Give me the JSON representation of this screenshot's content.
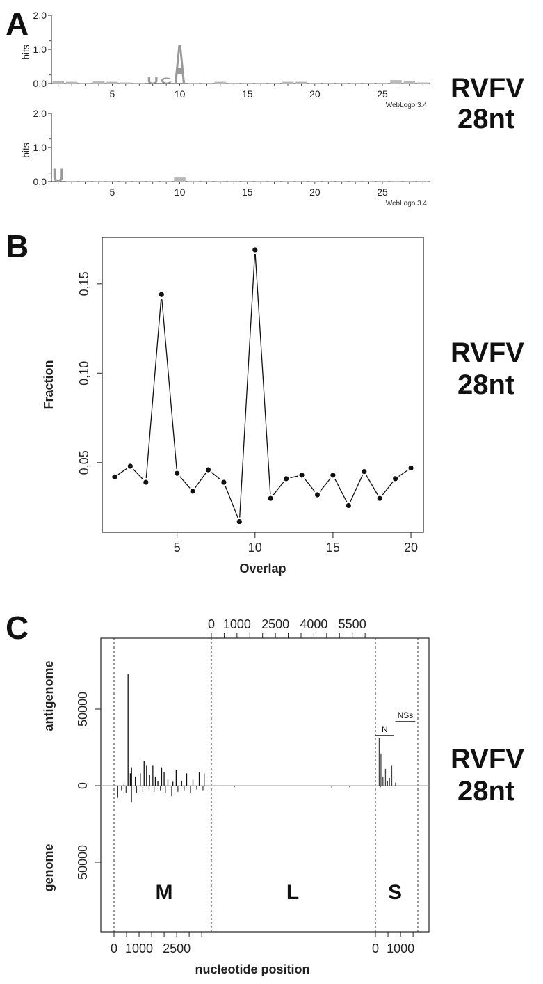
{
  "panels": {
    "A": {
      "letter": "A",
      "side_label_line1": "RVFV",
      "side_label_line2": "28nt"
    },
    "B": {
      "letter": "B",
      "side_label_line1": "RVFV",
      "side_label_line2": "28nt"
    },
    "C": {
      "letter": "C",
      "side_label_line1": "RVFV",
      "side_label_line2": "28nt"
    }
  },
  "chart_data": [
    {
      "type": "bar",
      "panel": "A",
      "subplot": "top",
      "ylabel": "bits",
      "ylim": [
        0,
        2.0
      ],
      "y_ticks": [
        "0.0",
        "1.0",
        "2.0"
      ],
      "x_ticks": [
        5,
        10,
        15,
        20,
        25
      ],
      "xlim": [
        0.5,
        28.5
      ],
      "software_label": "WebLogo 3.4",
      "positions": [
        1,
        2,
        3,
        4,
        5,
        6,
        7,
        8,
        9,
        10,
        11,
        12,
        13,
        14,
        15,
        16,
        17,
        18,
        19,
        20,
        21,
        22,
        23,
        24,
        25,
        26,
        27,
        28
      ],
      "values": [
        0.07,
        0.05,
        0.02,
        0.06,
        0.05,
        0.03,
        0.02,
        0.19,
        0.17,
        1.18,
        0.02,
        0.02,
        0.05,
        0.02,
        0.02,
        0.02,
        0.02,
        0.05,
        0.05,
        0.02,
        0.02,
        0.02,
        0.02,
        0.02,
        0.02,
        0.1,
        0.08,
        0.03
      ],
      "letters": [
        "",
        "",
        "",
        "",
        "",
        "",
        "",
        "U",
        "C",
        "A",
        "",
        "",
        "",
        "",
        "",
        "",
        "",
        "",
        "",
        "",
        "",
        "",
        "",
        "",
        "",
        "",
        "",
        ""
      ]
    },
    {
      "type": "bar",
      "panel": "A",
      "subplot": "bottom",
      "ylabel": "bits",
      "ylim": [
        0,
        2.0
      ],
      "y_ticks": [
        "0.0",
        "1.0",
        "2.0"
      ],
      "x_ticks": [
        5,
        10,
        15,
        20,
        25
      ],
      "xlim": [
        0.5,
        28.5
      ],
      "software_label": "WebLogo 3.4",
      "positions": [
        1,
        2,
        3,
        4,
        5,
        6,
        7,
        8,
        9,
        10,
        11,
        12,
        13,
        14,
        15,
        16,
        17,
        18,
        19,
        20,
        21,
        22,
        23,
        24,
        25,
        26,
        27,
        28
      ],
      "values": [
        0.4,
        0.02,
        0.02,
        0.02,
        0.02,
        0.02,
        0.02,
        0.02,
        0.02,
        0.12,
        0.02,
        0.02,
        0.02,
        0.02,
        0.02,
        0.02,
        0.02,
        0.02,
        0.02,
        0.02,
        0.02,
        0.02,
        0.02,
        0.02,
        0.02,
        0.02,
        0.02,
        0.02
      ],
      "letters": [
        "U",
        "",
        "",
        "",
        "",
        "",
        "",
        "",
        "",
        "",
        "",
        "",
        "",
        "",
        "",
        "",
        "",
        "",
        "",
        "",
        "",
        "",
        "",
        "",
        "",
        "",
        "",
        ""
      ]
    },
    {
      "type": "line",
      "panel": "B",
      "xlabel": "Overlap",
      "ylabel": "Fraction",
      "x_ticks": [
        5,
        10,
        15,
        20
      ],
      "y_ticks": [
        0.05,
        0.1,
        0.15
      ],
      "y_tick_labels": [
        "0,05",
        "0,10",
        "0,15"
      ],
      "xlim": [
        0.2,
        20.8
      ],
      "ylim": [
        0.011,
        0.176
      ],
      "x": [
        1,
        2,
        3,
        4,
        5,
        6,
        7,
        8,
        9,
        10,
        11,
        12,
        13,
        14,
        15,
        16,
        17,
        18,
        19,
        20
      ],
      "y": [
        0.042,
        0.048,
        0.039,
        0.144,
        0.044,
        0.034,
        0.046,
        0.039,
        0.017,
        0.169,
        0.03,
        0.041,
        0.043,
        0.032,
        0.043,
        0.026,
        0.045,
        0.03,
        0.041,
        0.047
      ]
    },
    {
      "type": "bar",
      "panel": "C",
      "xlabel": "nucleotide position",
      "ylabel_top": "antigenome",
      "ylabel_bottom": "genome",
      "y_ticks": [
        50000,
        0,
        50000
      ],
      "y_tick_labels": [
        "50000",
        "0",
        "50000"
      ],
      "ylim": [
        -82000,
        82000
      ],
      "top_ticks": [
        "0",
        "1000",
        "2500",
        "4000",
        "5500"
      ],
      "bottom_ticks_M": [
        "0",
        "1000",
        "2500"
      ],
      "bottom_ticks_S": [
        "0",
        "1000"
      ],
      "segments": [
        {
          "name": "M",
          "length": 3885
        },
        {
          "name": "L",
          "length": 6404
        },
        {
          "name": "S",
          "length": 1690
        }
      ],
      "annotations": [
        {
          "label": "N",
          "start": 1,
          "end": 738
        },
        {
          "label": "NSs",
          "start": 791,
          "end": 1590
        }
      ],
      "positive_peaks": [
        {
          "segment": "M",
          "pos": 400,
          "value": 1500
        },
        {
          "segment": "M",
          "pos": 560,
          "value": 73000
        },
        {
          "segment": "M",
          "pos": 650,
          "value": 8000
        },
        {
          "segment": "M",
          "pos": 700,
          "value": 12000
        },
        {
          "segment": "M",
          "pos": 850,
          "value": 6000
        },
        {
          "segment": "M",
          "pos": 1050,
          "value": 8000
        },
        {
          "segment": "M",
          "pos": 1200,
          "value": 16000
        },
        {
          "segment": "M",
          "pos": 1300,
          "value": 13000
        },
        {
          "segment": "M",
          "pos": 1420,
          "value": 7000
        },
        {
          "segment": "M",
          "pos": 1550,
          "value": 13000
        },
        {
          "segment": "M",
          "pos": 1650,
          "value": 6000
        },
        {
          "segment": "M",
          "pos": 1750,
          "value": 3000
        },
        {
          "segment": "M",
          "pos": 1900,
          "value": 12000
        },
        {
          "segment": "M",
          "pos": 2000,
          "value": 9000
        },
        {
          "segment": "M",
          "pos": 2150,
          "value": 4000
        },
        {
          "segment": "M",
          "pos": 2350,
          "value": 2500
        },
        {
          "segment": "M",
          "pos": 2480,
          "value": 10000
        },
        {
          "segment": "M",
          "pos": 2700,
          "value": 3000
        },
        {
          "segment": "M",
          "pos": 2900,
          "value": 8000
        },
        {
          "segment": "M",
          "pos": 3150,
          "value": 4000
        },
        {
          "segment": "M",
          "pos": 3400,
          "value": 9000
        },
        {
          "segment": "M",
          "pos": 3600,
          "value": 8000
        },
        {
          "segment": "S",
          "pos": 150,
          "value": 31000
        },
        {
          "segment": "S",
          "pos": 220,
          "value": 21000
        },
        {
          "segment": "S",
          "pos": 300,
          "value": 6000
        },
        {
          "segment": "S",
          "pos": 400,
          "value": 11000
        },
        {
          "segment": "S",
          "pos": 480,
          "value": 3000
        },
        {
          "segment": "S",
          "pos": 560,
          "value": 5000
        },
        {
          "segment": "S",
          "pos": 650,
          "value": 13000
        },
        {
          "segment": "S",
          "pos": 800,
          "value": 2000
        }
      ],
      "negative_peaks": [
        {
          "segment": "M",
          "pos": 150,
          "value": 8000
        },
        {
          "segment": "M",
          "pos": 300,
          "value": 3000
        },
        {
          "segment": "M",
          "pos": 480,
          "value": 5000
        },
        {
          "segment": "M",
          "pos": 700,
          "value": 11000
        },
        {
          "segment": "M",
          "pos": 900,
          "value": 5000
        },
        {
          "segment": "M",
          "pos": 1150,
          "value": 4000
        },
        {
          "segment": "M",
          "pos": 1400,
          "value": 3000
        },
        {
          "segment": "M",
          "pos": 1600,
          "value": 4000
        },
        {
          "segment": "M",
          "pos": 1850,
          "value": 3000
        },
        {
          "segment": "M",
          "pos": 2050,
          "value": 5000
        },
        {
          "segment": "M",
          "pos": 2300,
          "value": 7000
        },
        {
          "segment": "M",
          "pos": 2550,
          "value": 4000
        },
        {
          "segment": "M",
          "pos": 2800,
          "value": 3000
        },
        {
          "segment": "M",
          "pos": 3050,
          "value": 5000
        },
        {
          "segment": "M",
          "pos": 3300,
          "value": 2500
        },
        {
          "segment": "M",
          "pos": 3550,
          "value": 3000
        },
        {
          "segment": "L",
          "pos": 900,
          "value": 1000
        },
        {
          "segment": "L",
          "pos": 4700,
          "value": 1500
        },
        {
          "segment": "L",
          "pos": 5400,
          "value": 1000
        },
        {
          "segment": "S",
          "pos": 200,
          "value": 1000
        }
      ]
    }
  ]
}
